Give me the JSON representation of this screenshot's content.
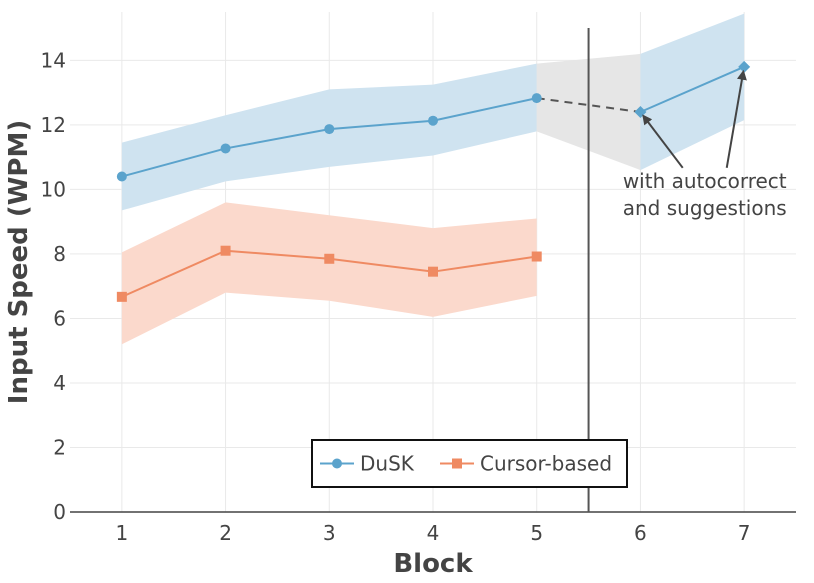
{
  "chart_data": {
    "type": "line",
    "xlabel": "Block",
    "ylabel": "Input Speed (WPM)",
    "xlim": [
      0.5,
      7.5
    ],
    "ylim": [
      0,
      15.5
    ],
    "x_ticks": [
      1,
      2,
      3,
      4,
      5,
      6,
      7
    ],
    "y_ticks": [
      0,
      2,
      4,
      6,
      8,
      10,
      12,
      14
    ],
    "grid": true,
    "legend_position": "bottom-center",
    "divider_x": 5.5,
    "series": [
      {
        "name": "DuSK",
        "color": "#5ba3cc",
        "band_color": "#cfe3f0",
        "marker": "circle",
        "x": [
          1,
          2,
          3,
          4,
          5
        ],
        "y": [
          10.4,
          11.27,
          11.87,
          12.13,
          12.83
        ],
        "lower": [
          9.35,
          10.25,
          10.7,
          11.05,
          11.8
        ],
        "upper": [
          11.45,
          12.3,
          13.1,
          13.25,
          13.9
        ]
      },
      {
        "name": "Cursor-based",
        "color": "#ef8a62",
        "band_color": "#fbd9cc",
        "marker": "square",
        "x": [
          1,
          2,
          3,
          4,
          5
        ],
        "y": [
          6.67,
          8.1,
          7.85,
          7.45,
          7.92
        ],
        "lower": [
          5.2,
          6.8,
          6.55,
          6.05,
          6.7
        ],
        "upper": [
          8.05,
          9.6,
          9.2,
          8.8,
          9.1
        ]
      }
    ],
    "autocorrect_segment": {
      "color": "#5ba3cc",
      "band_color": "#cfe3f0",
      "marker": "diamond",
      "x": [
        6,
        7
      ],
      "y": [
        12.4,
        13.8
      ],
      "lower": [
        10.6,
        12.15
      ],
      "upper": [
        14.2,
        15.45
      ]
    },
    "transition": {
      "color": "#555555",
      "band_color": "#e6e6e6",
      "x": [
        5,
        6
      ],
      "y": [
        12.83,
        12.4
      ],
      "lower": [
        11.8,
        10.6
      ],
      "upper": [
        13.9,
        14.2
      ]
    },
    "annotation": {
      "lines": [
        "with autocorrect",
        "and suggestions"
      ],
      "x": 6.62,
      "y": 10.05,
      "arrow_targets": [
        [
          6,
          12.4
        ],
        [
          7,
          13.8
        ]
      ]
    }
  }
}
